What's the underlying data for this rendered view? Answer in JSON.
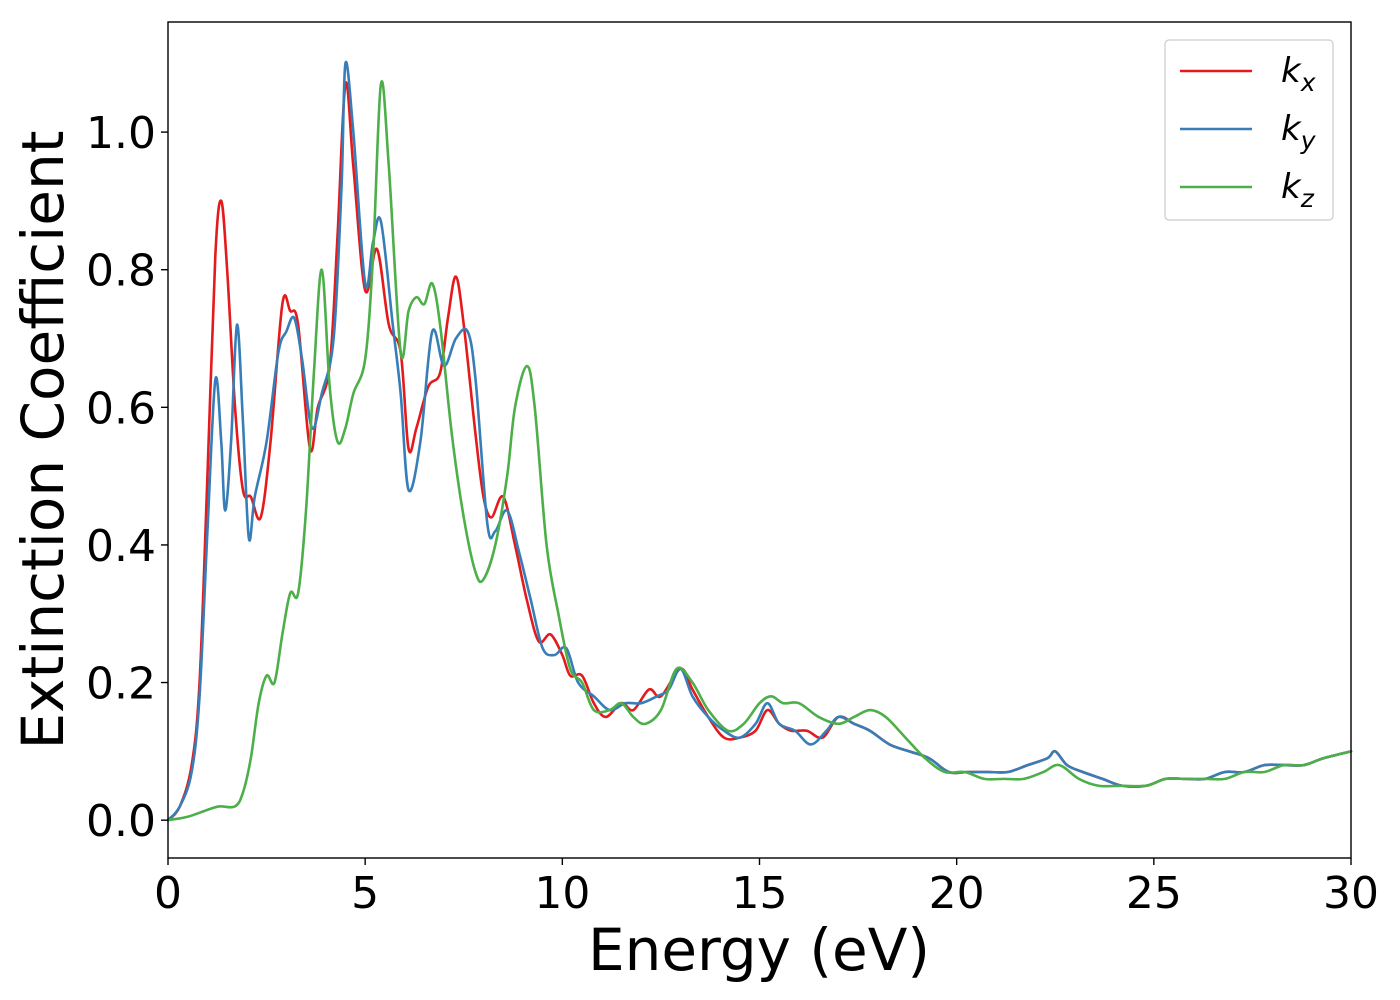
{
  "chart_data": {
    "type": "line",
    "title": "",
    "xlabel": "Energy (eV)",
    "ylabel": "Extinction Coefficient",
    "xlim": [
      0,
      30
    ],
    "ylim": [
      -0.055,
      1.16
    ],
    "xticks": [
      0,
      5,
      10,
      15,
      20,
      25,
      30
    ],
    "yticks": [
      0.0,
      0.2,
      0.4,
      0.6,
      0.8,
      1.0
    ],
    "ytick_labels": [
      "0.0",
      "0.2",
      "0.4",
      "0.6",
      "0.8",
      "1.0"
    ],
    "grid": false,
    "legend_position": "top-right",
    "series": [
      {
        "name": "k_x",
        "label_base": "k",
        "label_sub": "x",
        "color": "#e41a1c",
        "points": [
          [
            0,
            0
          ],
          [
            0.3,
            0.02
          ],
          [
            0.6,
            0.08
          ],
          [
            0.8,
            0.2
          ],
          [
            1.0,
            0.5
          ],
          [
            1.2,
            0.82
          ],
          [
            1.35,
            0.9
          ],
          [
            1.5,
            0.8
          ],
          [
            1.7,
            0.6
          ],
          [
            1.9,
            0.48
          ],
          [
            2.1,
            0.47
          ],
          [
            2.35,
            0.44
          ],
          [
            2.6,
            0.55
          ],
          [
            2.9,
            0.75
          ],
          [
            3.1,
            0.74
          ],
          [
            3.3,
            0.72
          ],
          [
            3.6,
            0.54
          ],
          [
            3.8,
            0.6
          ],
          [
            4.1,
            0.66
          ],
          [
            4.3,
            0.85
          ],
          [
            4.5,
            1.07
          ],
          [
            4.7,
            0.95
          ],
          [
            5.0,
            0.77
          ],
          [
            5.3,
            0.83
          ],
          [
            5.6,
            0.72
          ],
          [
            5.9,
            0.68
          ],
          [
            6.1,
            0.54
          ],
          [
            6.3,
            0.57
          ],
          [
            6.6,
            0.63
          ],
          [
            6.9,
            0.65
          ],
          [
            7.1,
            0.73
          ],
          [
            7.3,
            0.79
          ],
          [
            7.5,
            0.72
          ],
          [
            7.8,
            0.56
          ],
          [
            8.0,
            0.47
          ],
          [
            8.2,
            0.44
          ],
          [
            8.5,
            0.47
          ],
          [
            8.8,
            0.4
          ],
          [
            9.1,
            0.32
          ],
          [
            9.4,
            0.26
          ],
          [
            9.7,
            0.27
          ],
          [
            10.0,
            0.24
          ],
          [
            10.2,
            0.21
          ],
          [
            10.5,
            0.21
          ],
          [
            10.8,
            0.17
          ],
          [
            11.1,
            0.15
          ],
          [
            11.5,
            0.17
          ],
          [
            11.8,
            0.16
          ],
          [
            12.2,
            0.19
          ],
          [
            12.5,
            0.18
          ],
          [
            13.0,
            0.22
          ],
          [
            13.3,
            0.19
          ],
          [
            13.7,
            0.15
          ],
          [
            14.1,
            0.12
          ],
          [
            14.5,
            0.12
          ],
          [
            14.9,
            0.13
          ],
          [
            15.2,
            0.16
          ],
          [
            15.5,
            0.14
          ],
          [
            15.8,
            0.13
          ],
          [
            16.2,
            0.13
          ],
          [
            16.6,
            0.12
          ],
          [
            17.0,
            0.15
          ],
          [
            17.4,
            0.14
          ],
          [
            17.8,
            0.13
          ],
          [
            18.3,
            0.11
          ],
          [
            18.8,
            0.1
          ],
          [
            19.3,
            0.09
          ],
          [
            19.8,
            0.07
          ],
          [
            20.3,
            0.07
          ],
          [
            20.8,
            0.07
          ],
          [
            21.3,
            0.07
          ],
          [
            21.8,
            0.08
          ],
          [
            22.3,
            0.09
          ],
          [
            22.5,
            0.1
          ],
          [
            22.8,
            0.08
          ],
          [
            23.2,
            0.07
          ],
          [
            23.7,
            0.06
          ],
          [
            24.2,
            0.05
          ],
          [
            24.8,
            0.05
          ],
          [
            25.3,
            0.06
          ],
          [
            25.8,
            0.06
          ],
          [
            26.3,
            0.06
          ],
          [
            26.8,
            0.07
          ],
          [
            27.3,
            0.07
          ],
          [
            27.8,
            0.08
          ],
          [
            28.3,
            0.08
          ],
          [
            28.8,
            0.08
          ],
          [
            29.3,
            0.09
          ],
          [
            30,
            0.1
          ]
        ]
      },
      {
        "name": "k_y",
        "label_base": "k",
        "label_sub": "y",
        "color": "#377eb8",
        "points": [
          [
            0,
            0
          ],
          [
            0.3,
            0.02
          ],
          [
            0.6,
            0.07
          ],
          [
            0.8,
            0.18
          ],
          [
            1.0,
            0.42
          ],
          [
            1.2,
            0.64
          ],
          [
            1.35,
            0.55
          ],
          [
            1.45,
            0.45
          ],
          [
            1.6,
            0.55
          ],
          [
            1.75,
            0.72
          ],
          [
            1.9,
            0.58
          ],
          [
            2.05,
            0.41
          ],
          [
            2.2,
            0.47
          ],
          [
            2.5,
            0.55
          ],
          [
            2.8,
            0.68
          ],
          [
            3.0,
            0.71
          ],
          [
            3.2,
            0.73
          ],
          [
            3.4,
            0.67
          ],
          [
            3.65,
            0.57
          ],
          [
            3.9,
            0.62
          ],
          [
            4.2,
            0.7
          ],
          [
            4.4,
            0.92
          ],
          [
            4.5,
            1.1
          ],
          [
            4.7,
            1.0
          ],
          [
            5.0,
            0.78
          ],
          [
            5.2,
            0.84
          ],
          [
            5.4,
            0.87
          ],
          [
            5.7,
            0.72
          ],
          [
            5.9,
            0.62
          ],
          [
            6.1,
            0.48
          ],
          [
            6.4,
            0.55
          ],
          [
            6.7,
            0.71
          ],
          [
            7.0,
            0.66
          ],
          [
            7.3,
            0.7
          ],
          [
            7.6,
            0.71
          ],
          [
            7.8,
            0.64
          ],
          [
            8.1,
            0.43
          ],
          [
            8.3,
            0.42
          ],
          [
            8.6,
            0.45
          ],
          [
            8.9,
            0.39
          ],
          [
            9.2,
            0.32
          ],
          [
            9.5,
            0.25
          ],
          [
            9.8,
            0.24
          ],
          [
            10.1,
            0.25
          ],
          [
            10.4,
            0.2
          ],
          [
            10.8,
            0.18
          ],
          [
            11.2,
            0.16
          ],
          [
            11.6,
            0.17
          ],
          [
            12.0,
            0.17
          ],
          [
            12.4,
            0.18
          ],
          [
            12.7,
            0.19
          ],
          [
            13.0,
            0.22
          ],
          [
            13.3,
            0.18
          ],
          [
            13.7,
            0.15
          ],
          [
            14.1,
            0.13
          ],
          [
            14.5,
            0.12
          ],
          [
            14.9,
            0.14
          ],
          [
            15.2,
            0.17
          ],
          [
            15.5,
            0.14
          ],
          [
            15.9,
            0.13
          ],
          [
            16.3,
            0.11
          ],
          [
            16.7,
            0.13
          ],
          [
            17.0,
            0.15
          ],
          [
            17.4,
            0.14
          ],
          [
            17.8,
            0.13
          ],
          [
            18.3,
            0.11
          ],
          [
            18.8,
            0.1
          ],
          [
            19.3,
            0.09
          ],
          [
            19.8,
            0.07
          ],
          [
            20.3,
            0.07
          ],
          [
            20.8,
            0.07
          ],
          [
            21.3,
            0.07
          ],
          [
            21.8,
            0.08
          ],
          [
            22.3,
            0.09
          ],
          [
            22.5,
            0.1
          ],
          [
            22.8,
            0.08
          ],
          [
            23.2,
            0.07
          ],
          [
            23.7,
            0.06
          ],
          [
            24.2,
            0.05
          ],
          [
            24.8,
            0.05
          ],
          [
            25.3,
            0.06
          ],
          [
            25.8,
            0.06
          ],
          [
            26.3,
            0.06
          ],
          [
            26.8,
            0.07
          ],
          [
            27.3,
            0.07
          ],
          [
            27.8,
            0.08
          ],
          [
            28.3,
            0.08
          ],
          [
            28.8,
            0.08
          ],
          [
            29.3,
            0.09
          ],
          [
            30,
            0.1
          ]
        ]
      },
      {
        "name": "k_z",
        "label_base": "k",
        "label_sub": "z",
        "color": "#4daf4a",
        "points": [
          [
            0,
            0
          ],
          [
            0.5,
            0.005
          ],
          [
            1.0,
            0.015
          ],
          [
            1.3,
            0.02
          ],
          [
            1.7,
            0.02
          ],
          [
            1.9,
            0.04
          ],
          [
            2.1,
            0.09
          ],
          [
            2.3,
            0.17
          ],
          [
            2.5,
            0.21
          ],
          [
            2.7,
            0.2
          ],
          [
            2.9,
            0.27
          ],
          [
            3.1,
            0.33
          ],
          [
            3.3,
            0.33
          ],
          [
            3.5,
            0.45
          ],
          [
            3.7,
            0.65
          ],
          [
            3.9,
            0.8
          ],
          [
            4.1,
            0.63
          ],
          [
            4.3,
            0.55
          ],
          [
            4.5,
            0.57
          ],
          [
            4.7,
            0.62
          ],
          [
            5.0,
            0.67
          ],
          [
            5.2,
            0.82
          ],
          [
            5.4,
            1.07
          ],
          [
            5.6,
            0.95
          ],
          [
            5.9,
            0.68
          ],
          [
            6.1,
            0.74
          ],
          [
            6.3,
            0.76
          ],
          [
            6.5,
            0.75
          ],
          [
            6.7,
            0.78
          ],
          [
            6.9,
            0.72
          ],
          [
            7.2,
            0.56
          ],
          [
            7.5,
            0.44
          ],
          [
            7.8,
            0.36
          ],
          [
            8.0,
            0.35
          ],
          [
            8.3,
            0.4
          ],
          [
            8.6,
            0.5
          ],
          [
            8.8,
            0.6
          ],
          [
            9.1,
            0.66
          ],
          [
            9.3,
            0.6
          ],
          [
            9.6,
            0.4
          ],
          [
            9.9,
            0.3
          ],
          [
            10.2,
            0.22
          ],
          [
            10.5,
            0.2
          ],
          [
            10.8,
            0.16
          ],
          [
            11.2,
            0.16
          ],
          [
            11.5,
            0.17
          ],
          [
            11.8,
            0.15
          ],
          [
            12.1,
            0.14
          ],
          [
            12.5,
            0.16
          ],
          [
            12.9,
            0.22
          ],
          [
            13.3,
            0.2
          ],
          [
            13.7,
            0.16
          ],
          [
            14.2,
            0.13
          ],
          [
            14.6,
            0.14
          ],
          [
            15.0,
            0.17
          ],
          [
            15.3,
            0.18
          ],
          [
            15.6,
            0.17
          ],
          [
            16.0,
            0.17
          ],
          [
            16.5,
            0.15
          ],
          [
            17.0,
            0.14
          ],
          [
            17.4,
            0.15
          ],
          [
            17.8,
            0.16
          ],
          [
            18.2,
            0.15
          ],
          [
            18.7,
            0.12
          ],
          [
            19.2,
            0.09
          ],
          [
            19.7,
            0.07
          ],
          [
            20.2,
            0.07
          ],
          [
            20.7,
            0.06
          ],
          [
            21.2,
            0.06
          ],
          [
            21.7,
            0.06
          ],
          [
            22.2,
            0.07
          ],
          [
            22.6,
            0.08
          ],
          [
            23.1,
            0.06
          ],
          [
            23.6,
            0.05
          ],
          [
            24.2,
            0.05
          ],
          [
            24.8,
            0.05
          ],
          [
            25.3,
            0.06
          ],
          [
            25.8,
            0.06
          ],
          [
            26.3,
            0.06
          ],
          [
            26.8,
            0.06
          ],
          [
            27.3,
            0.07
          ],
          [
            27.8,
            0.07
          ],
          [
            28.3,
            0.08
          ],
          [
            28.8,
            0.08
          ],
          [
            29.3,
            0.09
          ],
          [
            30,
            0.1
          ]
        ]
      }
    ]
  }
}
